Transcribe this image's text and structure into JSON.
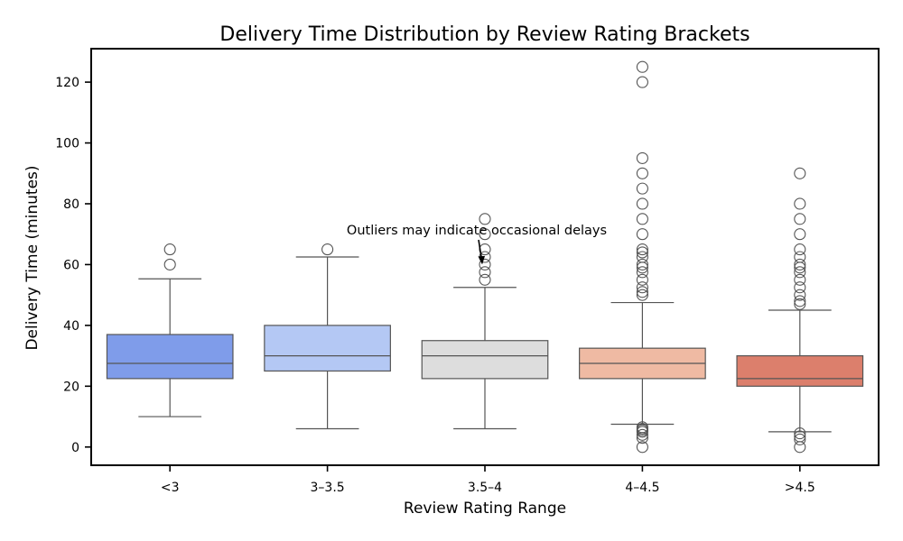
{
  "chart_data": {
    "type": "box",
    "title": "Delivery Time Distribution by Review Rating Brackets",
    "xlabel": "Review Rating Range",
    "ylabel": "Delivery Time (minutes)",
    "ylim": [
      -6,
      131
    ],
    "yticks": [
      0,
      20,
      40,
      60,
      80,
      100,
      120
    ],
    "grid": false,
    "categories": [
      "<3",
      "3–3.5",
      "3.5–4",
      "4–4.5",
      ">4.5"
    ],
    "boxes": [
      {
        "category": "<3",
        "color": "#7f9cea",
        "whisker_low": 10,
        "q1": 22.5,
        "median": 27.5,
        "q3": 37,
        "whisker_high": 55.3,
        "outliers": [
          60,
          65
        ]
      },
      {
        "category": "3–3.5",
        "color": "#b4c8f4",
        "whisker_low": 6,
        "q1": 25,
        "median": 30,
        "q3": 40,
        "whisker_high": 62.5,
        "outliers": [
          65
        ]
      },
      {
        "category": "3.5–4",
        "color": "#dddddd",
        "whisker_low": 6,
        "q1": 22.5,
        "median": 30,
        "q3": 35,
        "whisker_high": 52.5,
        "outliers": [
          55,
          57.5,
          60,
          62.5,
          65,
          70,
          75
        ]
      },
      {
        "category": "4–4.5",
        "color": "#efbaa3",
        "whisker_low": 7.5,
        "q1": 22.5,
        "median": 27.5,
        "q3": 32.5,
        "whisker_high": 47.5,
        "outliers": [
          0,
          3,
          4,
          5,
          5.5,
          6,
          6.5,
          50,
          51,
          52.5,
          55,
          57.5,
          59,
          60,
          62.5,
          64,
          65,
          70,
          75,
          80,
          85,
          90,
          95,
          120,
          125
        ]
      },
      {
        "category": ">4.5",
        "color": "#dc7f6c",
        "whisker_low": 5,
        "q1": 20,
        "median": 22.5,
        "q3": 30,
        "whisker_high": 45,
        "outliers": [
          0,
          2.5,
          3.5,
          4.5,
          47,
          48,
          50,
          52.5,
          55,
          57.5,
          59,
          60,
          62.5,
          65,
          70,
          75,
          80,
          90
        ]
      }
    ],
    "annotation": {
      "text": "Outliers may indicate occasional delays",
      "arrow_target_category": "3.5–4",
      "arrow_target_value": 60
    }
  }
}
